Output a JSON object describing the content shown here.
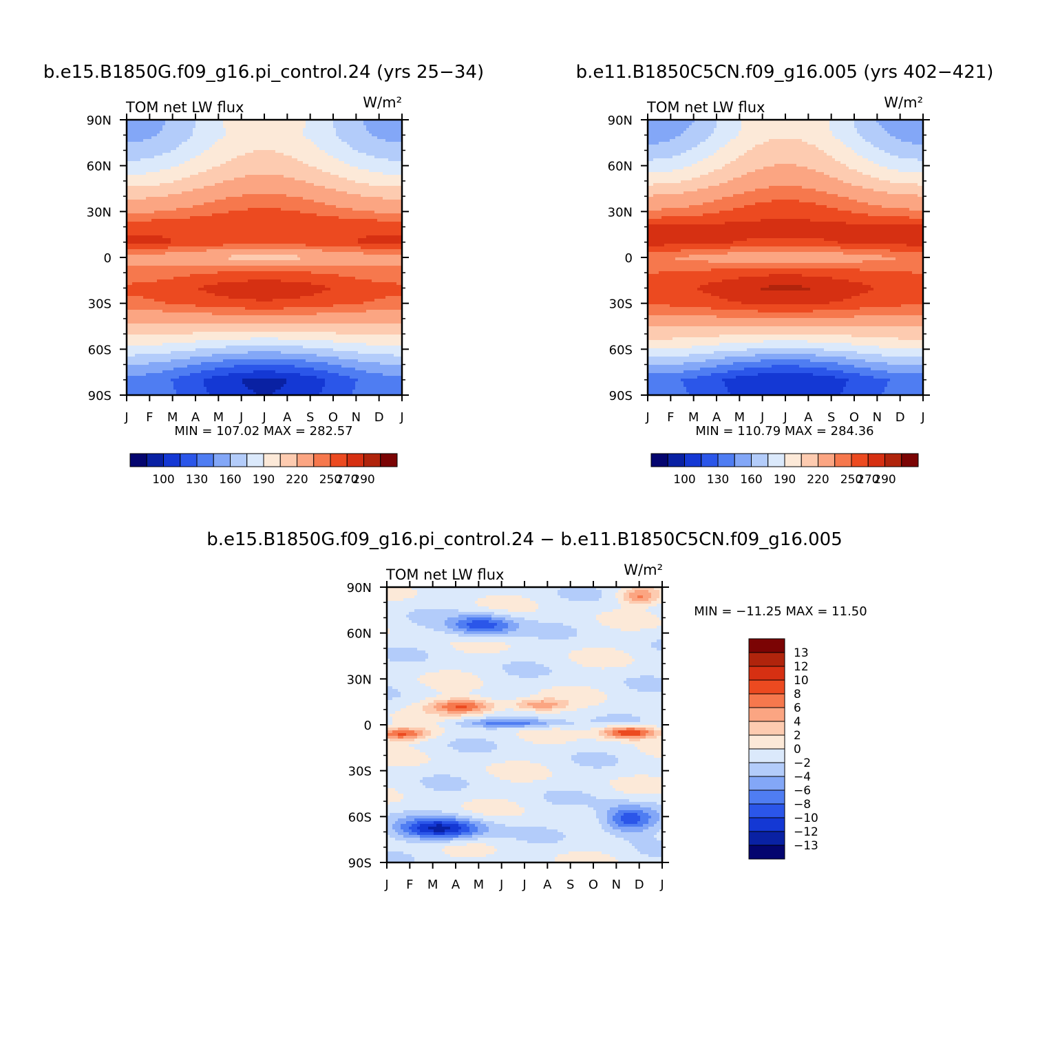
{
  "chart_data": [
    {
      "type": "heatmap",
      "panel": "case",
      "title": "b.e15.B1850G.f09_g16.pi_control.24 (yrs 25-34)",
      "title_display": "b.e15.B1850G.f09_g16.pi_control.24 (yrs 25−34)",
      "left_label": "TOM net LW flux",
      "units": "W/m²",
      "x_ticks": [
        "J",
        "F",
        "M",
        "A",
        "M",
        "J",
        "J",
        "A",
        "S",
        "O",
        "N",
        "D",
        "J"
      ],
      "y_ticks": [
        "90N",
        "60N",
        "30N",
        "0",
        "30S",
        "60S",
        "90S"
      ],
      "stats": {
        "min": 107.02,
        "max": 282.57
      },
      "stats_text": "MIN =  107.02  MAX =  282.57",
      "colorbar_labels": [
        "100",
        "130",
        "160",
        "190",
        "220",
        "250",
        "270",
        "290"
      ],
      "colors": [
        "#04056f",
        "#0921a3",
        "#1438d4",
        "#2b56e9",
        "#4f7df2",
        "#83a7f7",
        "#b3ccfa",
        "#dbe9fb",
        "#fce9d8",
        "#fdcbb0",
        "#fba582",
        "#f6784d",
        "#ec4a20",
        "#d63012",
        "#b0240c",
        "#7b0404"
      ],
      "contour_levels": [
        100,
        115,
        130,
        145,
        160,
        175,
        190,
        205,
        220,
        235,
        250,
        260,
        270,
        280,
        290
      ],
      "zonal_profile": {
        "lat": [
          90,
          80,
          70,
          60,
          50,
          40,
          30,
          20,
          10,
          0,
          -10,
          -20,
          -30,
          -40,
          -50,
          -60,
          -70,
          -80,
          -90
        ],
        "jan": [
          165,
          170,
          180,
          195,
          212,
          232,
          248,
          268,
          272,
          245,
          255,
          262,
          258,
          240,
          222,
          200,
          175,
          155,
          158
        ],
        "jul": [
          215,
          213,
          220,
          228,
          240,
          252,
          262,
          270,
          265,
          230,
          262,
          278,
          268,
          245,
          215,
          182,
          145,
          112,
          115
        ]
      }
    },
    {
      "type": "heatmap",
      "panel": "control",
      "title": "b.e11.B1850C5CN.f09_g16.005 (yrs 402-421)",
      "title_display": "b.e11.B1850C5CN.f09_g16.005 (yrs 402−421)",
      "left_label": "TOM net LW flux",
      "units": "W/m²",
      "x_ticks": [
        "J",
        "F",
        "M",
        "A",
        "M",
        "J",
        "J",
        "A",
        "S",
        "O",
        "N",
        "D",
        "J"
      ],
      "y_ticks": [
        "90N",
        "60N",
        "30N",
        "0",
        "30S",
        "60S",
        "90S"
      ],
      "stats": {
        "min": 110.79,
        "max": 284.36
      },
      "stats_text": "MIN =  110.79  MAX =  284.36",
      "colorbar_labels": [
        "100",
        "130",
        "160",
        "190",
        "220",
        "250",
        "270",
        "290"
      ],
      "colors": [
        "#04056f",
        "#0921a3",
        "#1438d4",
        "#2b56e9",
        "#4f7df2",
        "#83a7f7",
        "#b3ccfa",
        "#dbe9fb",
        "#fce9d8",
        "#fdcbb0",
        "#fba582",
        "#f6784d",
        "#ec4a20",
        "#d63012",
        "#b0240c",
        "#7b0404"
      ],
      "contour_levels": [
        100,
        115,
        130,
        145,
        160,
        175,
        190,
        205,
        220,
        235,
        250,
        260,
        270,
        280,
        290
      ],
      "zonal_profile": {
        "lat": [
          90,
          80,
          70,
          60,
          50,
          40,
          30,
          20,
          10,
          0,
          -10,
          -20,
          -30,
          -40,
          -50,
          -60,
          -70,
          -80,
          -90
        ],
        "jan": [
          160,
          168,
          180,
          196,
          215,
          236,
          252,
          272,
          275,
          250,
          260,
          266,
          262,
          245,
          228,
          205,
          178,
          150,
          152
        ],
        "jul": [
          218,
          218,
          228,
          236,
          246,
          258,
          266,
          274,
          268,
          238,
          268,
          282,
          272,
          250,
          220,
          188,
          148,
          115,
          118
        ]
      }
    },
    {
      "type": "heatmap",
      "panel": "difference",
      "title": "b.e15.B1850G.f09_g16.pi_control.24 - b.e11.B1850C5CN.f09_g16.005",
      "title_display": "b.e15.B1850G.f09_g16.pi_control.24 − b.e11.B1850C5CN.f09_g16.005",
      "left_label": "TOM net LW flux",
      "units": "W/m²",
      "x_ticks": [
        "J",
        "F",
        "M",
        "A",
        "M",
        "J",
        "J",
        "A",
        "S",
        "O",
        "N",
        "D",
        "J"
      ],
      "y_ticks": [
        "90N",
        "60N",
        "30N",
        "0",
        "30S",
        "60S",
        "90S"
      ],
      "stats": {
        "min": -11.25,
        "max": 11.5
      },
      "stats_text": "MIN = −11.25  MAX =   11.50",
      "colorbar_labels": [
        "13",
        "12",
        "10",
        "8",
        "6",
        "4",
        "2",
        "0",
        "−2",
        "−4",
        "−6",
        "−8",
        "−10",
        "−12",
        "−13"
      ],
      "colors": [
        "#7b0404",
        "#b0240c",
        "#d63012",
        "#ec4a20",
        "#f6784d",
        "#fba582",
        "#fdcbb0",
        "#fce9d8",
        "#dbe9fb",
        "#b3ccfa",
        "#83a7f7",
        "#4f7df2",
        "#2b56e9",
        "#1438d4",
        "#0921a3",
        "#04056f"
      ],
      "contour_levels": [
        13,
        12,
        10,
        8,
        6,
        4,
        2,
        0,
        -2,
        -4,
        -6,
        -8,
        -10,
        -12,
        -13
      ]
    }
  ]
}
